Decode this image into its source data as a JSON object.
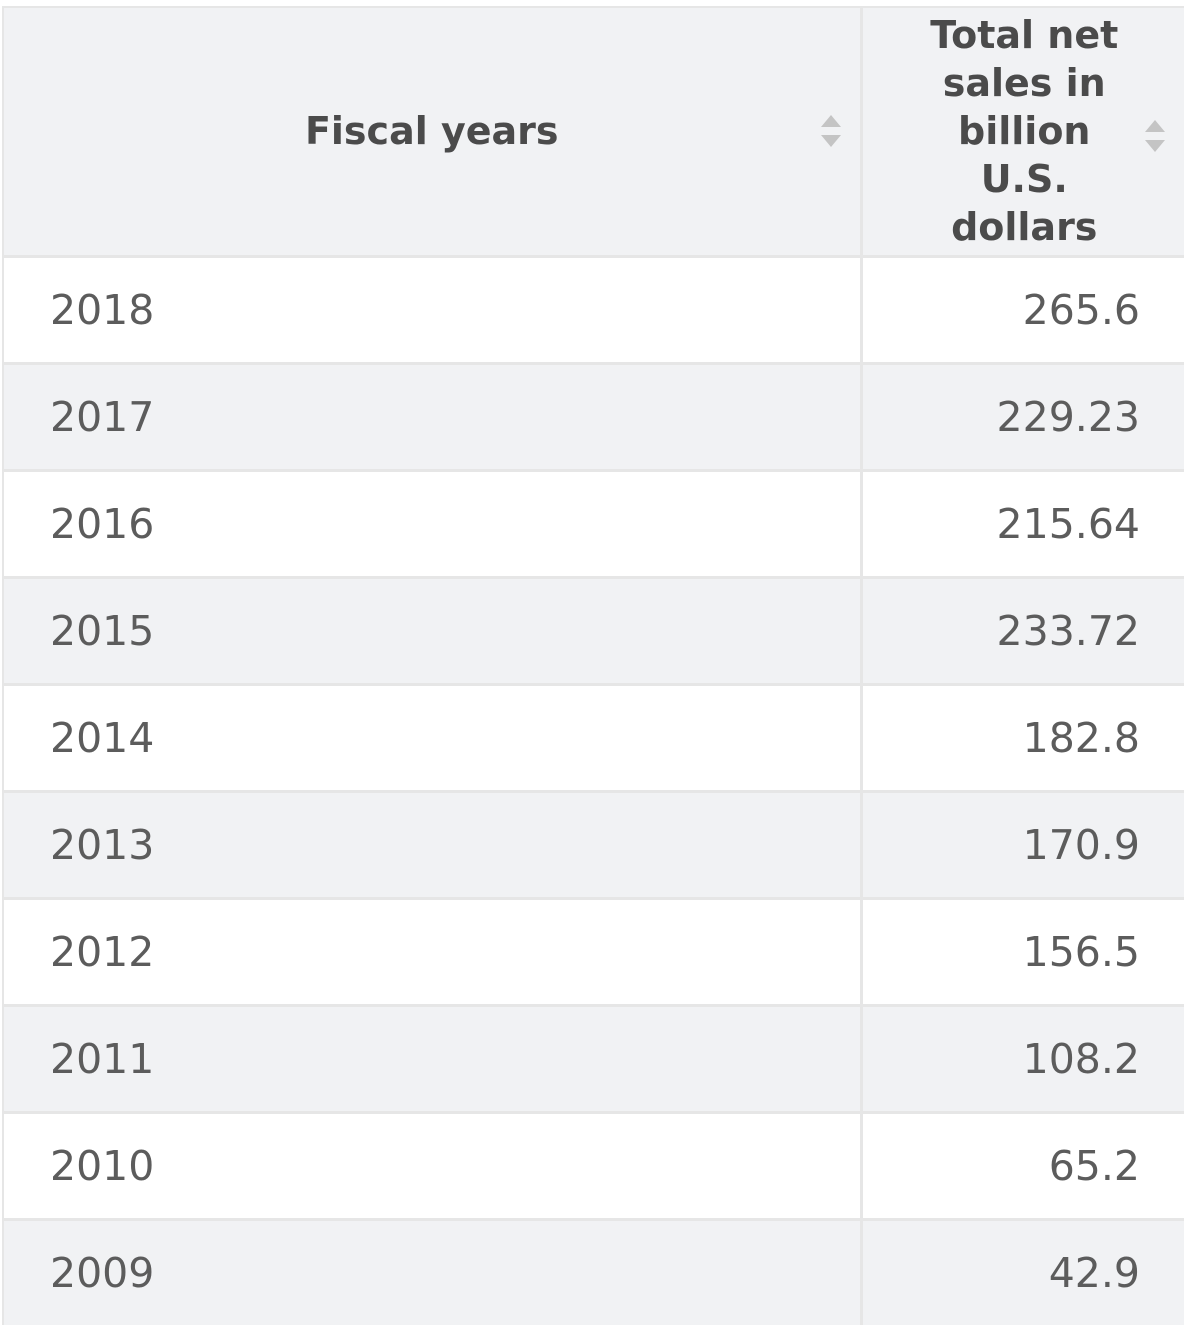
{
  "table": {
    "headers": [
      "Fiscal years",
      "Total net sales in billion U.S. dollars"
    ],
    "sort_icon": "sort-arrows-icon"
  },
  "chart_data": {
    "type": "table",
    "columns": [
      "Fiscal years",
      "Total net sales in billion U.S. dollars"
    ],
    "rows": [
      [
        "2018",
        "265.6"
      ],
      [
        "2017",
        "229.23"
      ],
      [
        "2016",
        "215.64"
      ],
      [
        "2015",
        "233.72"
      ],
      [
        "2014",
        "182.8"
      ],
      [
        "2013",
        "170.9"
      ],
      [
        "2012",
        "156.5"
      ],
      [
        "2011",
        "108.2"
      ],
      [
        "2010",
        "65.2"
      ],
      [
        "2009",
        "42.9"
      ]
    ]
  },
  "colors": {
    "header_bg": "#f1f2f4",
    "header_text": "#4b4b4b",
    "cell_text": "#5c5c5c",
    "grid": "#e6e6e6",
    "sort_icon": "#c4c4c4"
  }
}
